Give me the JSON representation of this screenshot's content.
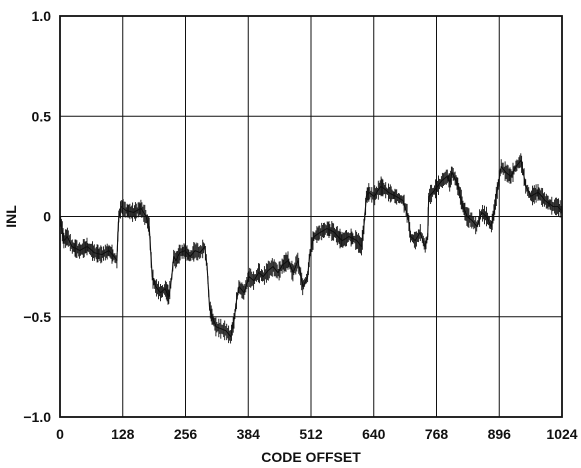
{
  "chart_data": {
    "type": "line",
    "title": "",
    "xlabel": "CODE OFFSET",
    "ylabel": "INL",
    "xlim": [
      0,
      1024
    ],
    "ylim": [
      -1.0,
      1.0
    ],
    "grid": true,
    "x_ticks": [
      0,
      128,
      256,
      384,
      512,
      640,
      768,
      896,
      1024
    ],
    "x_tick_labels": [
      "0",
      "128",
      "256",
      "384",
      "512",
      "640",
      "768",
      "896",
      "1024"
    ],
    "y_ticks": [
      -1.0,
      -0.5,
      0,
      0.5,
      1.0
    ],
    "y_tick_labels": [
      "−1.0",
      "−0.5",
      "0",
      "0.5",
      "1.0"
    ],
    "series": [
      {
        "color": "#111111",
        "x": [
          0,
          3,
          8,
          15,
          25,
          40,
          55,
          70,
          85,
          100,
          110,
          116,
          118,
          120,
          125,
          135,
          150,
          165,
          175,
          182,
          188,
          195,
          205,
          215,
          222,
          228,
          232,
          236,
          245,
          255,
          265,
          275,
          285,
          295,
          300,
          305,
          310,
          318,
          328,
          338,
          348,
          355,
          360,
          365,
          375,
          385,
          395,
          405,
          415,
          425,
          435,
          445,
          455,
          465,
          475,
          485,
          495,
          505,
          510,
          518,
          530,
          545,
          560,
          575,
          590,
          605,
          615,
          620,
          625,
          630,
          640,
          655,
          670,
          685,
          700,
          710,
          715,
          725,
          735,
          745,
          750,
          752,
          760,
          770,
          780,
          790,
          795,
          800,
          808,
          815,
          822,
          830,
          840,
          850,
          860,
          870,
          880,
          885,
          890,
          900,
          910,
          920,
          930,
          940,
          945,
          950,
          960,
          975,
          990,
          1005,
          1015,
          1024
        ],
        "y": [
          0,
          -0.05,
          -0.12,
          -0.1,
          -0.15,
          -0.17,
          -0.15,
          -0.18,
          -0.19,
          -0.17,
          -0.2,
          -0.22,
          -0.1,
          0.0,
          0.05,
          0.03,
          0.02,
          0.04,
          0.0,
          -0.05,
          -0.3,
          -0.35,
          -0.38,
          -0.36,
          -0.4,
          -0.3,
          -0.2,
          -0.22,
          -0.18,
          -0.17,
          -0.2,
          -0.17,
          -0.18,
          -0.15,
          -0.25,
          -0.45,
          -0.5,
          -0.55,
          -0.56,
          -0.57,
          -0.6,
          -0.52,
          -0.42,
          -0.35,
          -0.38,
          -0.3,
          -0.32,
          -0.28,
          -0.3,
          -0.27,
          -0.25,
          -0.28,
          -0.24,
          -0.22,
          -0.28,
          -0.22,
          -0.35,
          -0.3,
          -0.18,
          -0.1,
          -0.08,
          -0.06,
          -0.08,
          -0.12,
          -0.1,
          -0.12,
          -0.15,
          -0.05,
          0.1,
          0.12,
          0.1,
          0.15,
          0.12,
          0.1,
          0.08,
          0.0,
          -0.1,
          -0.12,
          -0.08,
          -0.15,
          -0.1,
          0.1,
          0.12,
          0.15,
          0.18,
          0.2,
          0.17,
          0.22,
          0.18,
          0.12,
          0.05,
          0.0,
          -0.02,
          -0.05,
          0.02,
          0.0,
          -0.05,
          0.02,
          0.1,
          0.25,
          0.22,
          0.2,
          0.25,
          0.28,
          0.22,
          0.15,
          0.1,
          0.12,
          0.08,
          0.05,
          0.05,
          0.03
        ]
      }
    ]
  }
}
